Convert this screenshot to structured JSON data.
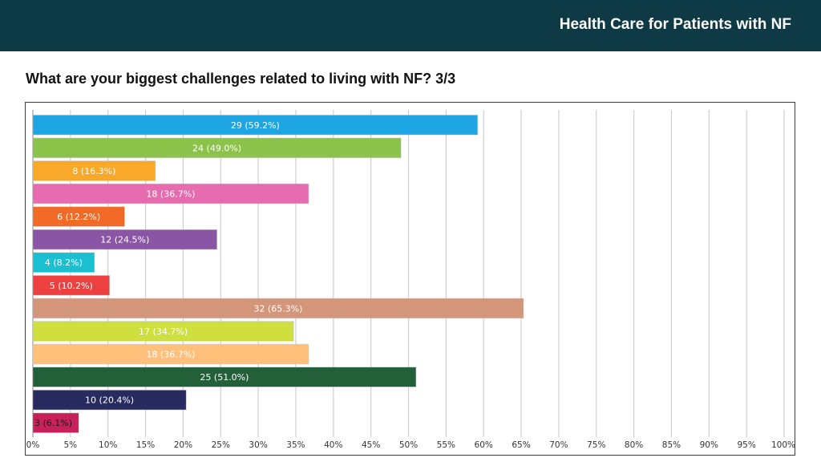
{
  "header": {
    "title": "Health Care for Patients with NF"
  },
  "question": {
    "text": "What are your biggest challenges related to living with NF? 3/3"
  },
  "chart_data": {
    "type": "bar",
    "orientation": "horizontal",
    "title": "",
    "xlabel": "",
    "ylabel": "",
    "xlim": [
      0,
      100
    ],
    "grid": true,
    "ticks": [
      "0%",
      "5%",
      "10%",
      "15%",
      "20%",
      "25%",
      "30%",
      "35%",
      "40%",
      "45%",
      "50%",
      "55%",
      "60%",
      "65%",
      "70%",
      "75%",
      "80%",
      "85%",
      "90%",
      "95%",
      "100%"
    ],
    "bars": [
      {
        "count": 29,
        "percent": 59.2,
        "label": "29 (59.2%)",
        "color": "#1ea6e4"
      },
      {
        "count": 24,
        "percent": 49.0,
        "label": "24 (49.0%)",
        "color": "#8bc34a"
      },
      {
        "count": 8,
        "percent": 16.3,
        "label": "8 (16.3%)",
        "color": "#faa82a"
      },
      {
        "count": 18,
        "percent": 36.7,
        "label": "18 (36.7%)",
        "color": "#e76caf"
      },
      {
        "count": 6,
        "percent": 12.2,
        "label": "6 (12.2%)",
        "color": "#f26b26"
      },
      {
        "count": 12,
        "percent": 24.5,
        "label": "12 (24.5%)",
        "color": "#8b55a6"
      },
      {
        "count": 4,
        "percent": 8.2,
        "label": "4 (8.2%)",
        "color": "#1bbfd2"
      },
      {
        "count": 5,
        "percent": 10.2,
        "label": "5 (10.2%)",
        "color": "#ec4140"
      },
      {
        "count": 32,
        "percent": 65.3,
        "label": "32 (65.3%)",
        "color": "#d4967a"
      },
      {
        "count": 17,
        "percent": 34.7,
        "label": "17 (34.7%)",
        "color": "#cfdf3e"
      },
      {
        "count": 18,
        "percent": 36.7,
        "label": "18 (36.7%)",
        "color": "#ffc07c"
      },
      {
        "count": 25,
        "percent": 51.0,
        "label": "25 (51.0%)",
        "color": "#23603a"
      },
      {
        "count": 10,
        "percent": 20.4,
        "label": "10 (20.4%)",
        "color": "#272b60"
      },
      {
        "count": 3,
        "percent": 6.1,
        "label": "3 (6.1%)",
        "color": "#c7205a"
      }
    ]
  }
}
